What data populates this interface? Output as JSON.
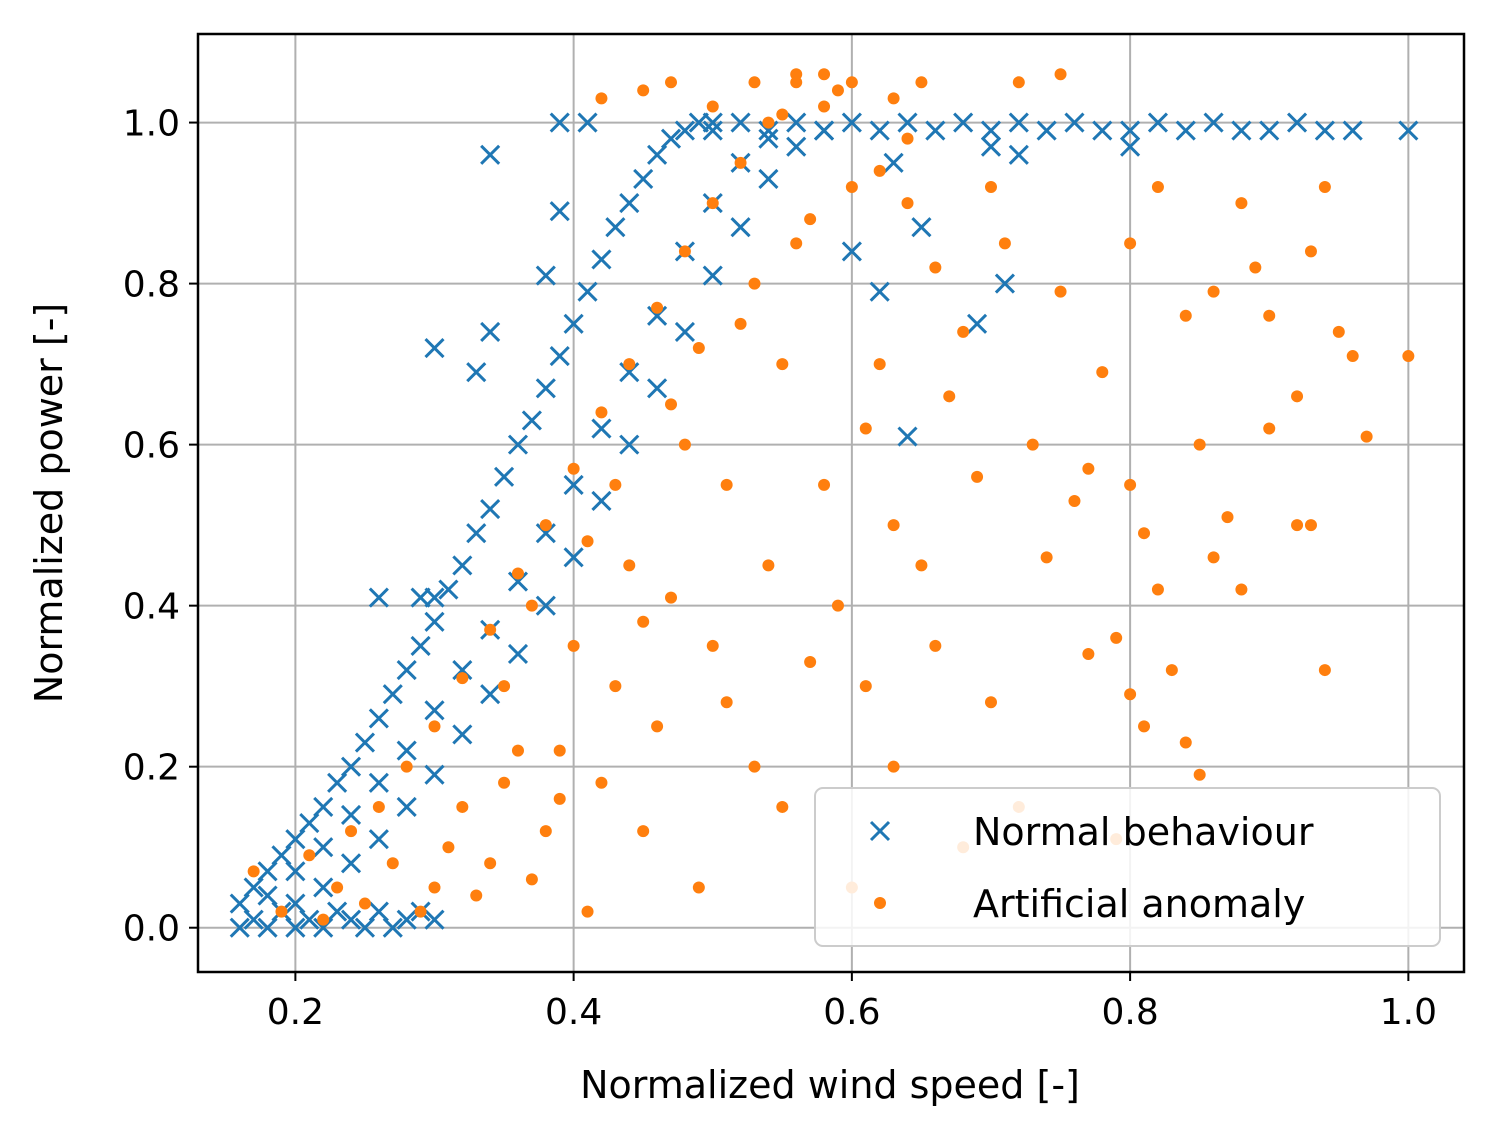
{
  "chart_data": {
    "type": "scatter",
    "title": "",
    "xlabel": "Normalized wind speed [-]",
    "ylabel": "Normalized power [-]",
    "xlim": [
      0.13,
      1.04
    ],
    "ylim": [
      -0.055,
      1.11
    ],
    "xticks": [
      0.2,
      0.4,
      0.6,
      0.8,
      1.0
    ],
    "yticks": [
      0.0,
      0.2,
      0.4,
      0.6,
      0.8,
      1.0
    ],
    "xtick_labels": [
      "0.2",
      "0.4",
      "0.6",
      "0.8",
      "1.0"
    ],
    "ytick_labels": [
      "0.0",
      "0.2",
      "0.4",
      "0.6",
      "0.8",
      "1.0"
    ],
    "grid": true,
    "legend": {
      "location": "lower-right"
    },
    "series": [
      {
        "name": "Normal behaviour",
        "marker": "x",
        "color": "#1f77b4",
        "points": [
          [
            0.16,
            0.0
          ],
          [
            0.17,
            0.01
          ],
          [
            0.18,
            0.0
          ],
          [
            0.19,
            0.02
          ],
          [
            0.2,
            0.0
          ],
          [
            0.21,
            0.01
          ],
          [
            0.22,
            0.0
          ],
          [
            0.23,
            0.02
          ],
          [
            0.24,
            0.01
          ],
          [
            0.25,
            0.0
          ],
          [
            0.26,
            0.02
          ],
          [
            0.27,
            0.0
          ],
          [
            0.28,
            0.01
          ],
          [
            0.29,
            0.02
          ],
          [
            0.3,
            0.01
          ],
          [
            0.16,
            0.03
          ],
          [
            0.17,
            0.05
          ],
          [
            0.18,
            0.07
          ],
          [
            0.19,
            0.09
          ],
          [
            0.2,
            0.11
          ],
          [
            0.21,
            0.13
          ],
          [
            0.22,
            0.15
          ],
          [
            0.23,
            0.18
          ],
          [
            0.24,
            0.2
          ],
          [
            0.25,
            0.23
          ],
          [
            0.26,
            0.26
          ],
          [
            0.27,
            0.29
          ],
          [
            0.28,
            0.32
          ],
          [
            0.29,
            0.35
          ],
          [
            0.3,
            0.38
          ],
          [
            0.31,
            0.42
          ],
          [
            0.32,
            0.45
          ],
          [
            0.33,
            0.49
          ],
          [
            0.34,
            0.52
          ],
          [
            0.35,
            0.56
          ],
          [
            0.36,
            0.6
          ],
          [
            0.37,
            0.63
          ],
          [
            0.38,
            0.67
          ],
          [
            0.39,
            0.71
          ],
          [
            0.4,
            0.75
          ],
          [
            0.41,
            0.79
          ],
          [
            0.42,
            0.83
          ],
          [
            0.43,
            0.87
          ],
          [
            0.44,
            0.9
          ],
          [
            0.45,
            0.93
          ],
          [
            0.46,
            0.96
          ],
          [
            0.47,
            0.98
          ],
          [
            0.48,
            0.99
          ],
          [
            0.49,
            1.0
          ],
          [
            0.5,
            1.0
          ],
          [
            0.18,
            0.04
          ],
          [
            0.2,
            0.07
          ],
          [
            0.22,
            0.1
          ],
          [
            0.24,
            0.14
          ],
          [
            0.26,
            0.18
          ],
          [
            0.28,
            0.22
          ],
          [
            0.3,
            0.27
          ],
          [
            0.32,
            0.32
          ],
          [
            0.34,
            0.37
          ],
          [
            0.36,
            0.43
          ],
          [
            0.38,
            0.49
          ],
          [
            0.4,
            0.55
          ],
          [
            0.42,
            0.62
          ],
          [
            0.44,
            0.69
          ],
          [
            0.46,
            0.76
          ],
          [
            0.48,
            0.84
          ],
          [
            0.5,
            0.9
          ],
          [
            0.52,
            0.95
          ],
          [
            0.54,
            0.98
          ],
          [
            0.2,
            0.03
          ],
          [
            0.22,
            0.05
          ],
          [
            0.24,
            0.08
          ],
          [
            0.26,
            0.11
          ],
          [
            0.28,
            0.15
          ],
          [
            0.3,
            0.19
          ],
          [
            0.32,
            0.24
          ],
          [
            0.34,
            0.29
          ],
          [
            0.36,
            0.34
          ],
          [
            0.38,
            0.4
          ],
          [
            0.4,
            0.46
          ],
          [
            0.42,
            0.53
          ],
          [
            0.44,
            0.6
          ],
          [
            0.46,
            0.67
          ],
          [
            0.48,
            0.74
          ],
          [
            0.5,
            0.81
          ],
          [
            0.52,
            0.87
          ],
          [
            0.54,
            0.93
          ],
          [
            0.56,
            0.97
          ],
          [
            0.58,
            0.99
          ],
          [
            0.5,
            0.99
          ],
          [
            0.52,
            1.0
          ],
          [
            0.54,
            0.99
          ],
          [
            0.56,
            1.0
          ],
          [
            0.58,
            0.99
          ],
          [
            0.6,
            1.0
          ],
          [
            0.62,
            0.99
          ],
          [
            0.64,
            1.0
          ],
          [
            0.66,
            0.99
          ],
          [
            0.68,
            1.0
          ],
          [
            0.7,
            0.99
          ],
          [
            0.72,
            1.0
          ],
          [
            0.74,
            0.99
          ],
          [
            0.76,
            1.0
          ],
          [
            0.78,
            0.99
          ],
          [
            0.8,
            0.99
          ],
          [
            0.82,
            1.0
          ],
          [
            0.84,
            0.99
          ],
          [
            0.86,
            1.0
          ],
          [
            0.88,
            0.99
          ],
          [
            0.9,
            0.99
          ],
          [
            0.92,
            1.0
          ],
          [
            0.94,
            0.99
          ],
          [
            0.96,
            0.99
          ],
          [
            1.0,
            0.99
          ],
          [
            0.39,
            1.0
          ],
          [
            0.41,
            1.0
          ],
          [
            0.34,
            0.96
          ],
          [
            0.3,
            0.72
          ],
          [
            0.34,
            0.74
          ],
          [
            0.33,
            0.69
          ],
          [
            0.26,
            0.41
          ],
          [
            0.29,
            0.41
          ],
          [
            0.3,
            0.41
          ],
          [
            0.39,
            0.89
          ],
          [
            0.38,
            0.81
          ],
          [
            0.64,
            0.61
          ],
          [
            0.69,
            0.75
          ],
          [
            0.71,
            0.8
          ],
          [
            0.62,
            0.79
          ],
          [
            0.6,
            0.84
          ],
          [
            0.65,
            0.87
          ],
          [
            0.63,
            0.95
          ],
          [
            0.7,
            0.97
          ],
          [
            0.8,
            0.97
          ],
          [
            0.72,
            0.96
          ]
        ]
      },
      {
        "name": "Artificial anomaly",
        "marker": "o",
        "color": "#ff7f0e",
        "points": [
          [
            0.17,
            0.07
          ],
          [
            0.19,
            0.02
          ],
          [
            0.21,
            0.09
          ],
          [
            0.22,
            0.01
          ],
          [
            0.23,
            0.05
          ],
          [
            0.24,
            0.12
          ],
          [
            0.25,
            0.03
          ],
          [
            0.26,
            0.15
          ],
          [
            0.27,
            0.08
          ],
          [
            0.28,
            0.2
          ],
          [
            0.29,
            0.02
          ],
          [
            0.3,
            0.25
          ],
          [
            0.31,
            0.1
          ],
          [
            0.32,
            0.31
          ],
          [
            0.33,
            0.04
          ],
          [
            0.34,
            0.37
          ],
          [
            0.35,
            0.18
          ],
          [
            0.36,
            0.44
          ],
          [
            0.37,
            0.06
          ],
          [
            0.38,
            0.5
          ],
          [
            0.39,
            0.22
          ],
          [
            0.4,
            0.57
          ],
          [
            0.41,
            0.02
          ],
          [
            0.42,
            0.64
          ],
          [
            0.43,
            0.3
          ],
          [
            0.44,
            0.7
          ],
          [
            0.45,
            0.12
          ],
          [
            0.46,
            0.77
          ],
          [
            0.47,
            0.41
          ],
          [
            0.48,
            0.84
          ],
          [
            0.49,
            0.05
          ],
          [
            0.5,
            0.9
          ],
          [
            0.51,
            0.55
          ],
          [
            0.52,
            0.95
          ],
          [
            0.53,
            0.2
          ],
          [
            0.54,
            1.0
          ],
          [
            0.55,
            0.7
          ],
          [
            0.56,
            1.05
          ],
          [
            0.57,
            0.33
          ],
          [
            0.58,
            1.02
          ],
          [
            0.3,
            0.05
          ],
          [
            0.32,
            0.15
          ],
          [
            0.34,
            0.08
          ],
          [
            0.36,
            0.22
          ],
          [
            0.38,
            0.12
          ],
          [
            0.4,
            0.35
          ],
          [
            0.42,
            0.18
          ],
          [
            0.44,
            0.45
          ],
          [
            0.46,
            0.25
          ],
          [
            0.48,
            0.6
          ],
          [
            0.5,
            0.35
          ],
          [
            0.52,
            0.75
          ],
          [
            0.54,
            0.45
          ],
          [
            0.56,
            0.85
          ],
          [
            0.58,
            0.55
          ],
          [
            0.6,
            0.92
          ],
          [
            0.35,
            0.3
          ],
          [
            0.37,
            0.4
          ],
          [
            0.39,
            0.16
          ],
          [
            0.41,
            0.48
          ],
          [
            0.43,
            0.55
          ],
          [
            0.45,
            0.38
          ],
          [
            0.47,
            0.65
          ],
          [
            0.49,
            0.72
          ],
          [
            0.51,
            0.28
          ],
          [
            0.53,
            0.8
          ],
          [
            0.55,
            0.15
          ],
          [
            0.57,
            0.88
          ],
          [
            0.59,
            0.4
          ],
          [
            0.61,
            0.62
          ],
          [
            0.63,
            0.5
          ],
          [
            0.6,
            0.05
          ],
          [
            0.61,
            0.3
          ],
          [
            0.62,
            0.7
          ],
          [
            0.63,
            0.2
          ],
          [
            0.64,
            0.9
          ],
          [
            0.65,
            0.45
          ],
          [
            0.66,
            0.35
          ],
          [
            0.67,
            0.66
          ],
          [
            0.68,
            0.1
          ],
          [
            0.69,
            0.56
          ],
          [
            0.7,
            0.28
          ],
          [
            0.71,
            0.85
          ],
          [
            0.72,
            0.15
          ],
          [
            0.73,
            0.6
          ],
          [
            0.74,
            0.46
          ],
          [
            0.75,
            0.79
          ],
          [
            0.76,
            0.53
          ],
          [
            0.77,
            0.34
          ],
          [
            0.78,
            0.69
          ],
          [
            0.79,
            0.11
          ],
          [
            0.62,
            0.94
          ],
          [
            0.64,
            0.98
          ],
          [
            0.66,
            0.82
          ],
          [
            0.68,
            0.74
          ],
          [
            0.7,
            0.92
          ],
          [
            0.72,
            1.05
          ],
          [
            0.75,
            1.06
          ],
          [
            0.8,
            0.85
          ],
          [
            0.82,
            0.92
          ],
          [
            0.84,
            0.76
          ],
          [
            0.86,
            0.79
          ],
          [
            0.88,
            0.9
          ],
          [
            0.89,
            0.82
          ],
          [
            0.9,
            0.76
          ],
          [
            0.92,
            0.66
          ],
          [
            0.93,
            0.84
          ],
          [
            0.94,
            0.92
          ],
          [
            0.95,
            0.74
          ],
          [
            0.96,
            0.71
          ],
          [
            0.97,
            0.61
          ],
          [
            1.0,
            0.71
          ],
          [
            0.8,
            0.55
          ],
          [
            0.81,
            0.49
          ],
          [
            0.82,
            0.42
          ],
          [
            0.83,
            0.32
          ],
          [
            0.84,
            0.23
          ],
          [
            0.85,
            0.19
          ],
          [
            0.86,
            0.46
          ],
          [
            0.87,
            0.51
          ],
          [
            0.88,
            0.42
          ],
          [
            0.85,
            0.6
          ],
          [
            0.92,
            0.5
          ],
          [
            0.93,
            0.5
          ],
          [
            0.94,
            0.32
          ],
          [
            0.9,
            0.62
          ],
          [
            0.8,
            0.29
          ],
          [
            0.81,
            0.25
          ],
          [
            0.79,
            0.36
          ],
          [
            0.77,
            0.57
          ],
          [
            0.42,
            1.03
          ],
          [
            0.45,
            1.04
          ],
          [
            0.5,
            1.02
          ],
          [
            0.53,
            1.05
          ],
          [
            0.55,
            1.01
          ],
          [
            0.59,
            1.04
          ],
          [
            0.63,
            1.03
          ],
          [
            0.65,
            1.05
          ],
          [
            0.47,
            1.05
          ],
          [
            0.56,
            1.06
          ],
          [
            0.58,
            1.06
          ],
          [
            0.6,
            1.05
          ]
        ]
      }
    ]
  }
}
